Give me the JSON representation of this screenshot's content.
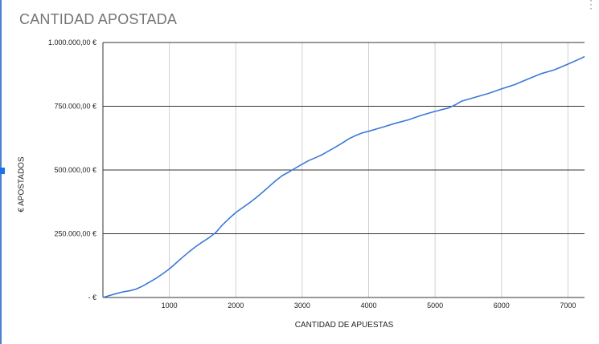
{
  "menu": {
    "icon": "more-vert-icon",
    "glyph": "⋮"
  },
  "chart_data": {
    "type": "line",
    "title": "CANTIDAD APOSTADA",
    "xlabel": "CANTIDAD DE APUESTAS",
    "ylabel": "€ APOSTADOS",
    "xlim": [
      0,
      7250
    ],
    "ylim": [
      0,
      1000000
    ],
    "xticks": [
      1000,
      2000,
      3000,
      4000,
      5000,
      6000,
      7000
    ],
    "yticks": [
      0,
      250000,
      500000,
      750000,
      1000000
    ],
    "ytick_labels": [
      "- €",
      "250.000,00 €",
      "500.000,00 €",
      "750.000,00 €",
      "1.000.000,00 €"
    ],
    "grid": true,
    "legend": "none",
    "line_color": "#3b78d8",
    "series": [
      {
        "x": [
          0,
          100,
          200,
          300,
          400,
          500,
          600,
          700,
          800,
          900,
          1000,
          1100,
          1200,
          1300,
          1400,
          1500,
          1600,
          1700,
          1800,
          1900,
          2000,
          2100,
          2200,
          2300,
          2400,
          2500,
          2600,
          2700,
          2800,
          2900,
          3000,
          3100,
          3200,
          3300,
          3400,
          3500,
          3600,
          3700,
          3800,
          3900,
          4000,
          4200,
          4400,
          4600,
          4800,
          5000,
          5200,
          5300,
          5400,
          5600,
          5800,
          6000,
          6200,
          6400,
          6600,
          6800,
          7000,
          7200,
          7250
        ],
        "y": [
          0,
          8000,
          15000,
          22000,
          26000,
          33000,
          45000,
          60000,
          75000,
          93000,
          112000,
          135000,
          158000,
          180000,
          200000,
          218000,
          235000,
          255000,
          285000,
          310000,
          333000,
          352000,
          370000,
          390000,
          412000,
          435000,
          458000,
          478000,
          492000,
          508000,
          523000,
          537000,
          548000,
          560000,
          575000,
          590000,
          605000,
          622000,
          635000,
          645000,
          652000,
          667000,
          683000,
          697000,
          715000,
          730000,
          743000,
          755000,
          770000,
          785000,
          800000,
          818000,
          835000,
          857000,
          878000,
          893000,
          915000,
          938000,
          945000
        ]
      }
    ]
  }
}
